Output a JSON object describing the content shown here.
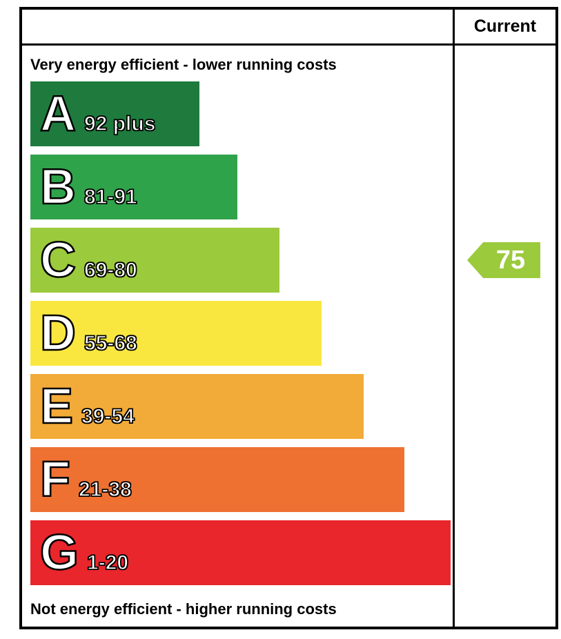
{
  "header": {
    "current_label": "Current"
  },
  "captions": {
    "top": "Very energy efficient - lower running costs",
    "bottom": "Not energy efficient - higher running costs"
  },
  "chart_data": {
    "type": "bar",
    "categories": [
      "A",
      "B",
      "C",
      "D",
      "E",
      "F",
      "G"
    ],
    "bands": [
      {
        "letter": "A",
        "range": "92 plus",
        "color": "#1e7b3d",
        "width_pct": 40
      },
      {
        "letter": "B",
        "range": "81-91",
        "color": "#2fa34a",
        "width_pct": 49
      },
      {
        "letter": "C",
        "range": "69-80",
        "color": "#9bca3c",
        "width_pct": 59
      },
      {
        "letter": "D",
        "range": "55-68",
        "color": "#f9e73f",
        "width_pct": 69
      },
      {
        "letter": "E",
        "range": "39-54",
        "color": "#f2ab38",
        "width_pct": 79
      },
      {
        "letter": "F",
        "range": "21-38",
        "color": "#ee7132",
        "width_pct": 88.5
      },
      {
        "letter": "G",
        "range": "1-20",
        "color": "#e8262c",
        "width_pct": 99.5
      }
    ],
    "current": {
      "value": "75",
      "band": "C",
      "color": "#9bca3c"
    }
  }
}
